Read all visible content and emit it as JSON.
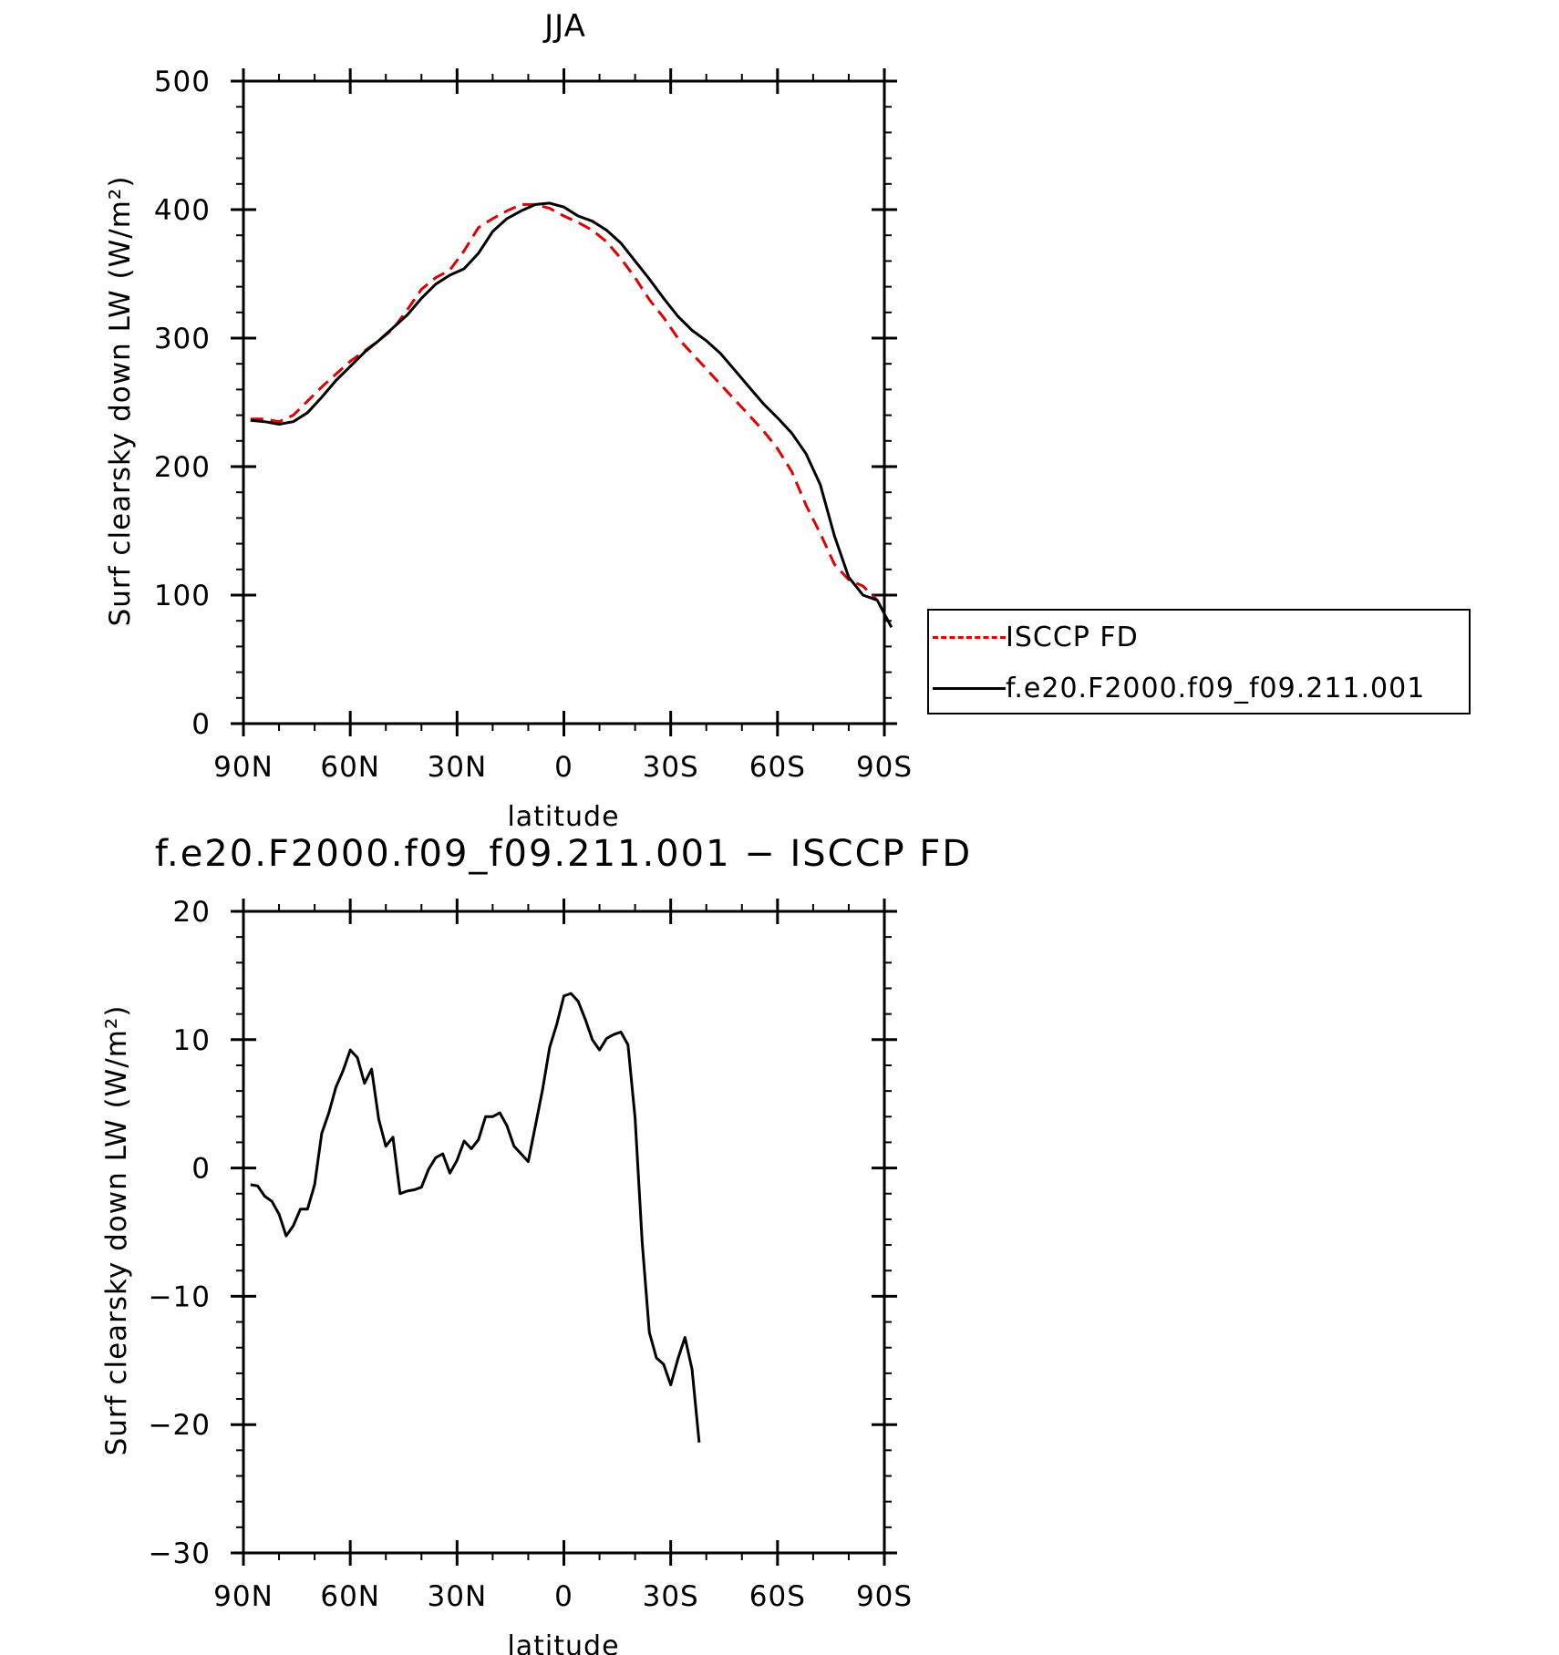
{
  "chart_data": [
    {
      "type": "line",
      "title": "JJA",
      "xlabel": "latitude",
      "ylabel": "Surf clearsky down LW (W/m²)",
      "xlim": [
        90,
        -90
      ],
      "ylim": [
        0,
        500
      ],
      "xticks": [
        90,
        60,
        30,
        0,
        -30,
        -60,
        -90
      ],
      "xtick_labels": [
        "90N",
        "60N",
        "30N",
        "0",
        "30S",
        "60S",
        "90S"
      ],
      "yticks": [
        0,
        100,
        200,
        300,
        400,
        500
      ],
      "ytick_labels": [
        "0",
        "100",
        "200",
        "300",
        "400",
        "500"
      ],
      "legend": "right",
      "series": [
        {
          "name": "ISCCP FD",
          "color": "#e00000",
          "dash": "dashed",
          "points": [
            [
              88,
              237
            ],
            [
              84,
              237
            ],
            [
              80,
              235
            ],
            [
              76,
              240
            ],
            [
              72,
              251
            ],
            [
              68,
              262
            ],
            [
              64,
              272
            ],
            [
              60,
              282
            ],
            [
              56,
              290
            ],
            [
              52,
              298
            ],
            [
              48,
              307
            ],
            [
              44,
              322
            ],
            [
              40,
              338
            ],
            [
              36,
              347
            ],
            [
              32,
              353
            ],
            [
              28,
              368
            ],
            [
              24,
              386
            ],
            [
              20,
              393
            ],
            [
              16,
              399
            ],
            [
              12,
              404
            ],
            [
              8,
              404
            ],
            [
              4,
              401
            ],
            [
              0,
              395
            ],
            [
              -4,
              390
            ],
            [
              -8,
              384
            ],
            [
              -12,
              375
            ],
            [
              -16,
              362
            ],
            [
              -20,
              347
            ],
            [
              -24,
              330
            ],
            [
              -28,
              316
            ],
            [
              -32,
              300
            ],
            [
              -36,
              288
            ],
            [
              -40,
              276
            ],
            [
              -44,
              264
            ],
            [
              -48,
              252
            ],
            [
              -52,
              240
            ],
            [
              -56,
              228
            ],
            [
              -60,
              214
            ],
            [
              -64,
              196
            ],
            [
              -68,
              170
            ],
            [
              -72,
              148
            ],
            [
              -76,
              124
            ],
            [
              -80,
              112
            ],
            [
              -84,
              107
            ],
            [
              -88,
              96
            ]
          ]
        },
        {
          "name": "f.e20.F2000.f09_f09.211.001",
          "color": "#000000",
          "dash": "solid",
          "points": [
            [
              88,
              236
            ],
            [
              84,
              235
            ],
            [
              80,
              233
            ],
            [
              76,
              235
            ],
            [
              72,
              242
            ],
            [
              68,
              254
            ],
            [
              64,
              267
            ],
            [
              60,
              278
            ],
            [
              56,
              289
            ],
            [
              52,
              298
            ],
            [
              48,
              308
            ],
            [
              44,
              318
            ],
            [
              40,
              331
            ],
            [
              36,
              342
            ],
            [
              32,
              349
            ],
            [
              28,
              354
            ],
            [
              24,
              366
            ],
            [
              20,
              383
            ],
            [
              16,
              393
            ],
            [
              12,
              399
            ],
            [
              8,
              404
            ],
            [
              4,
              405
            ],
            [
              0,
              402
            ],
            [
              -4,
              395
            ],
            [
              -8,
              391
            ],
            [
              -12,
              384
            ],
            [
              -16,
              374
            ],
            [
              -20,
              360
            ],
            [
              -24,
              346
            ],
            [
              -28,
              331
            ],
            [
              -32,
              317
            ],
            [
              -36,
              306
            ],
            [
              -40,
              298
            ],
            [
              -44,
              288
            ],
            [
              -48,
              275
            ],
            [
              -52,
              262
            ],
            [
              -56,
              249
            ],
            [
              -60,
              238
            ],
            [
              -64,
              226
            ],
            [
              -68,
              210
            ],
            [
              -72,
              186
            ],
            [
              -76,
              146
            ],
            [
              -80,
              114
            ],
            [
              -84,
              100
            ],
            [
              -88,
              96
            ],
            [
              -92,
              75
            ]
          ]
        }
      ]
    },
    {
      "type": "line",
      "title": "f.e20.F2000.f09_f09.211.001 − ISCCP FD",
      "xlabel": "latitude",
      "ylabel": "Surf clearsky down LW (W/m²)",
      "xlim": [
        90,
        -90
      ],
      "ylim": [
        -30,
        20
      ],
      "xticks": [
        90,
        60,
        30,
        0,
        -30,
        -60,
        -90
      ],
      "xtick_labels": [
        "90N",
        "60N",
        "30N",
        "0",
        "30S",
        "60S",
        "90S"
      ],
      "yticks": [
        -30,
        -20,
        -10,
        0,
        10,
        20
      ],
      "ytick_labels": [
        "−30",
        "−20",
        "−10",
        "0",
        "10",
        "20"
      ],
      "series": [
        {
          "color": "#000000",
          "dash": "solid",
          "points": [
            [
              88,
              -1.3
            ],
            [
              86,
              -1.4
            ],
            [
              84,
              -2.2
            ],
            [
              82,
              -2.6
            ],
            [
              80,
              -3.6
            ],
            [
              78,
              -5.3
            ],
            [
              76,
              -4.5
            ],
            [
              74,
              -3.2
            ],
            [
              72,
              -3.2
            ],
            [
              70,
              -1.3
            ],
            [
              68,
              2.7
            ],
            [
              66,
              4.3
            ],
            [
              64,
              6.3
            ],
            [
              62,
              7.6
            ],
            [
              60,
              9.2
            ],
            [
              58,
              8.6
            ],
            [
              56,
              6.6
            ],
            [
              54,
              7.7
            ],
            [
              52,
              3.8
            ],
            [
              50,
              1.7
            ],
            [
              48,
              2.4
            ],
            [
              46,
              -2.0
            ],
            [
              44,
              -1.8
            ],
            [
              42,
              -1.7
            ],
            [
              40,
              -1.5
            ],
            [
              38,
              -0.1
            ],
            [
              36,
              0.8
            ],
            [
              34,
              1.1
            ],
            [
              32,
              -0.4
            ],
            [
              30,
              0.6
            ],
            [
              28,
              2.1
            ],
            [
              26,
              1.5
            ],
            [
              24,
              2.2
            ],
            [
              22,
              4.0
            ],
            [
              20,
              4.0
            ],
            [
              18,
              4.3
            ],
            [
              16,
              3.3
            ],
            [
              14,
              1.7
            ],
            [
              12,
              1.1
            ],
            [
              10,
              0.5
            ],
            [
              8,
              3.3
            ],
            [
              6,
              6.1
            ],
            [
              4,
              9.4
            ],
            [
              2,
              11.2
            ],
            [
              0,
              13.4
            ],
            [
              -2,
              13.6
            ],
            [
              -4,
              13.0
            ],
            [
              -6,
              11.6
            ],
            [
              -8,
              10.0
            ],
            [
              -10,
              9.2
            ],
            [
              -12,
              10.1
            ],
            [
              -14,
              10.4
            ],
            [
              -16,
              10.6
            ],
            [
              -18,
              9.6
            ],
            [
              -20,
              3.9
            ],
            [
              -22,
              -5.8
            ],
            [
              -24,
              -12.8
            ],
            [
              -26,
              -14.8
            ],
            [
              -28,
              -15.3
            ],
            [
              -30,
              -16.9
            ],
            [
              -32,
              -14.9
            ],
            [
              -34,
              -13.2
            ],
            [
              -36,
              -15.7
            ],
            [
              -38,
              -21.4
            ]
          ]
        }
      ]
    }
  ]
}
